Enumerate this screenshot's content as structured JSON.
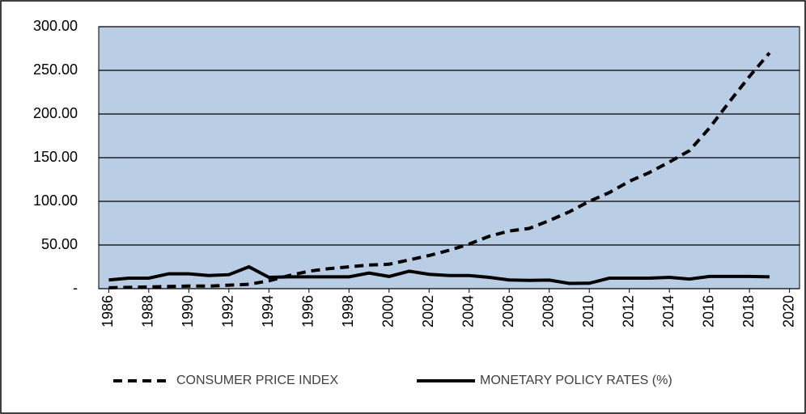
{
  "chart_data": {
    "type": "line",
    "x": [
      1986,
      1987,
      1988,
      1989,
      1990,
      1991,
      1992,
      1993,
      1994,
      1995,
      1996,
      1997,
      1998,
      1999,
      2000,
      2001,
      2002,
      2003,
      2004,
      2005,
      2006,
      2007,
      2008,
      2009,
      2010,
      2011,
      2012,
      2013,
      2014,
      2015,
      2016,
      2017,
      2018,
      2019
    ],
    "series": [
      {
        "name": "CONSUMER PRICE INDEX",
        "color": "#000000",
        "dash": true,
        "values": [
          1,
          1.5,
          2,
          2.5,
          3,
          3,
          4,
          5,
          9,
          15,
          20,
          23,
          25,
          27,
          28,
          33,
          38,
          44,
          51,
          60,
          66,
          69,
          78,
          88,
          100,
          110,
          123,
          133,
          145,
          158,
          184,
          214,
          243,
          270
        ]
      },
      {
        "name": "MONETARY POLICY RATES (%)",
        "color": "#000000",
        "dash": false,
        "values": [
          10,
          12,
          12,
          17,
          17,
          15,
          16,
          25,
          13,
          13.5,
          13.5,
          13.5,
          13.5,
          18,
          14,
          20,
          16.5,
          15,
          15,
          13,
          10,
          9.5,
          9.8,
          6,
          6.25,
          12,
          12,
          12,
          13,
          11,
          14,
          14,
          14,
          13.5
        ]
      }
    ],
    "xlim": [
      1985.5,
      2020.5
    ],
    "xticks": [
      1986,
      1988,
      1990,
      1992,
      1994,
      1996,
      1998,
      2000,
      2002,
      2004,
      2006,
      2008,
      2010,
      2012,
      2014,
      2016,
      2018,
      2020
    ],
    "ylim": [
      0,
      300
    ],
    "yticks": [
      {
        "value": 0,
        "label": "-"
      },
      {
        "value": 50,
        "label": "50.00"
      },
      {
        "value": 100,
        "label": "100.00"
      },
      {
        "value": 150,
        "label": "150.00"
      },
      {
        "value": 200,
        "label": "200.00"
      },
      {
        "value": 250,
        "label": "250.00"
      },
      {
        "value": 300,
        "label": "300.00"
      }
    ],
    "grid": true,
    "plot_background": "#b9cde5",
    "legend": "bottom"
  }
}
